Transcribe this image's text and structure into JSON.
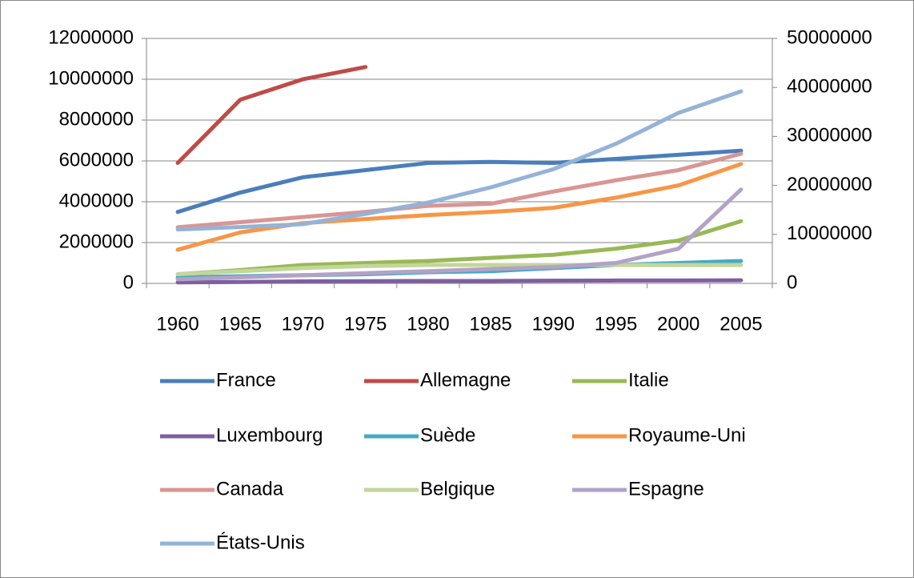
{
  "chart_data": {
    "type": "line",
    "categories": [
      "1960",
      "1965",
      "1970",
      "1975",
      "1980",
      "1985",
      "1990",
      "1995",
      "2000",
      "2005"
    ],
    "ylim": [
      0,
      12000000
    ],
    "yticks": [
      0,
      2000000,
      4000000,
      6000000,
      8000000,
      10000000,
      12000000
    ],
    "y2lim": [
      0,
      50000000
    ],
    "y2ticks": [
      0,
      10000000,
      20000000,
      30000000,
      40000000,
      50000000
    ],
    "grid": true,
    "legend": "bottom",
    "series": [
      {
        "name": "France",
        "color": "#4a7ebb",
        "values": [
          3500000,
          4450000,
          5200000,
          5550000,
          5900000,
          5950000,
          5900000,
          6100000,
          6300000,
          6500000
        ]
      },
      {
        "name": "Allemagne",
        "color": "#be4b48",
        "values": [
          5900000,
          9000000,
          10000000,
          10600000,
          null,
          null,
          null,
          null,
          null,
          null
        ]
      },
      {
        "name": "Italie",
        "color": "#98b954",
        "values": [
          450000,
          650000,
          900000,
          1000000,
          1100000,
          1250000,
          1400000,
          1700000,
          2100000,
          3050000
        ]
      },
      {
        "name": "Luxembourg",
        "color": "#7d60a0",
        "values": [
          50000,
          70000,
          100000,
          110000,
          120000,
          120000,
          130000,
          140000,
          140000,
          150000
        ]
      },
      {
        "name": "Suède",
        "color": "#46aac5",
        "values": [
          300000,
          350000,
          400000,
          450000,
          550000,
          600000,
          750000,
          900000,
          1000000,
          1100000
        ]
      },
      {
        "name": "Royaume-Uni",
        "color": "#f79646",
        "values": [
          1650000,
          2500000,
          2950000,
          3150000,
          3350000,
          3500000,
          3700000,
          4200000,
          4800000,
          5850000
        ]
      },
      {
        "name": "Canada",
        "color": "#d99694",
        "values": [
          2750000,
          3000000,
          3250000,
          3500000,
          3800000,
          3900000,
          4500000,
          5050000,
          5550000,
          6350000
        ]
      },
      {
        "name": "Belgique",
        "color": "#c3d69b",
        "values": [
          450000,
          600000,
          750000,
          850000,
          900000,
          900000,
          900000,
          900000,
          900000,
          900000
        ]
      },
      {
        "name": "Espagne",
        "color": "#b3a2c7",
        "values": [
          200000,
          300000,
          400000,
          500000,
          600000,
          700000,
          800000,
          1000000,
          1700000,
          4600000
        ]
      },
      {
        "name": "États-Unis",
        "color": "#95b3d7",
        "axis": "y2",
        "values": [
          11000000,
          11500000,
          12100000,
          14200000,
          16500000,
          19600000,
          23300000,
          28500000,
          34800000,
          39200000
        ]
      }
    ]
  }
}
